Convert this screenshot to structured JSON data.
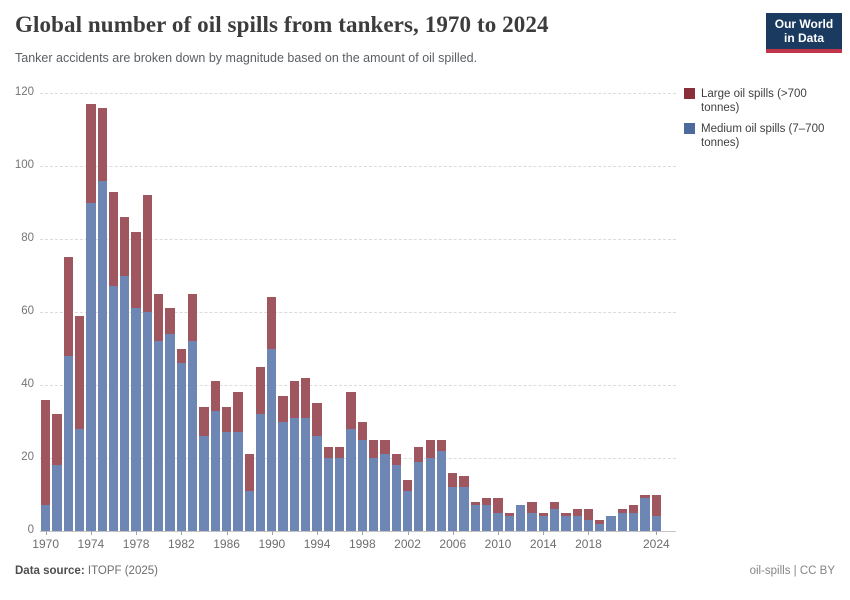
{
  "header": {
    "title": "Global number of oil spills from tankers, 1970 to 2024",
    "subtitle": "Tanker accidents are broken down by magnitude based on the amount of oil spilled.",
    "logo": {
      "line1": "Our World",
      "line2": "in Data"
    }
  },
  "chart_data": {
    "type": "bar",
    "stacked": true,
    "title": "Global number of oil spills from tankers, 1970 to 2024",
    "x": [
      1970,
      1971,
      1972,
      1973,
      1974,
      1975,
      1976,
      1977,
      1978,
      1979,
      1980,
      1981,
      1982,
      1983,
      1984,
      1985,
      1986,
      1987,
      1988,
      1989,
      1990,
      1991,
      1992,
      1993,
      1994,
      1995,
      1996,
      1997,
      1998,
      1999,
      2000,
      2001,
      2002,
      2003,
      2004,
      2005,
      2006,
      2007,
      2008,
      2009,
      2010,
      2011,
      2012,
      2013,
      2014,
      2015,
      2016,
      2017,
      2018,
      2019,
      2020,
      2021,
      2022,
      2023,
      2024
    ],
    "series": [
      {
        "name": "Medium oil spills (7–700 tonnes)",
        "color": "#6D86B4",
        "legend_color": "#4C6A9C",
        "values": [
          7,
          18,
          48,
          28,
          90,
          96,
          67,
          70,
          61,
          60,
          52,
          54,
          46,
          52,
          26,
          33,
          27,
          27,
          11,
          32,
          50,
          30,
          31,
          31,
          26,
          20,
          20,
          28,
          25,
          20,
          21,
          18,
          11,
          19,
          20,
          22,
          12,
          12,
          7,
          7,
          5,
          4,
          7,
          5,
          4,
          6,
          4,
          4,
          3,
          2,
          4,
          5,
          5,
          9,
          4
        ]
      },
      {
        "name": "Large oil spills (>700 tonnes)",
        "color": "#A0565F",
        "legend_color": "#883039",
        "values": [
          29,
          14,
          27,
          31,
          27,
          20,
          26,
          16,
          21,
          32,
          13,
          7,
          4,
          13,
          8,
          8,
          7,
          11,
          10,
          13,
          14,
          7,
          10,
          11,
          9,
          3,
          3,
          10,
          5,
          5,
          4,
          3,
          3,
          4,
          5,
          3,
          4,
          3,
          1,
          2,
          4,
          1,
          0,
          3,
          1,
          2,
          1,
          2,
          3,
          1,
          0,
          1,
          2,
          1,
          6
        ]
      }
    ],
    "ylim": [
      0,
      120
    ],
    "yticks": [
      0,
      20,
      40,
      60,
      80,
      100,
      120
    ],
    "xtick_labels": [
      1970,
      1974,
      1978,
      1982,
      1986,
      1990,
      1994,
      1998,
      2002,
      2006,
      2010,
      2014,
      2018,
      2024
    ],
    "grid": true,
    "legend_position": "right"
  },
  "legend": {
    "items": [
      {
        "label": "Large oil spills (>700 tonnes)",
        "color": "#883039"
      },
      {
        "label": "Medium oil spills (7–700 tonnes)",
        "color": "#4C6A9C"
      }
    ]
  },
  "footer": {
    "source_label": "Data source:",
    "source_value": "ITOPF (2025)",
    "right_text": "oil-spills | CC BY"
  }
}
